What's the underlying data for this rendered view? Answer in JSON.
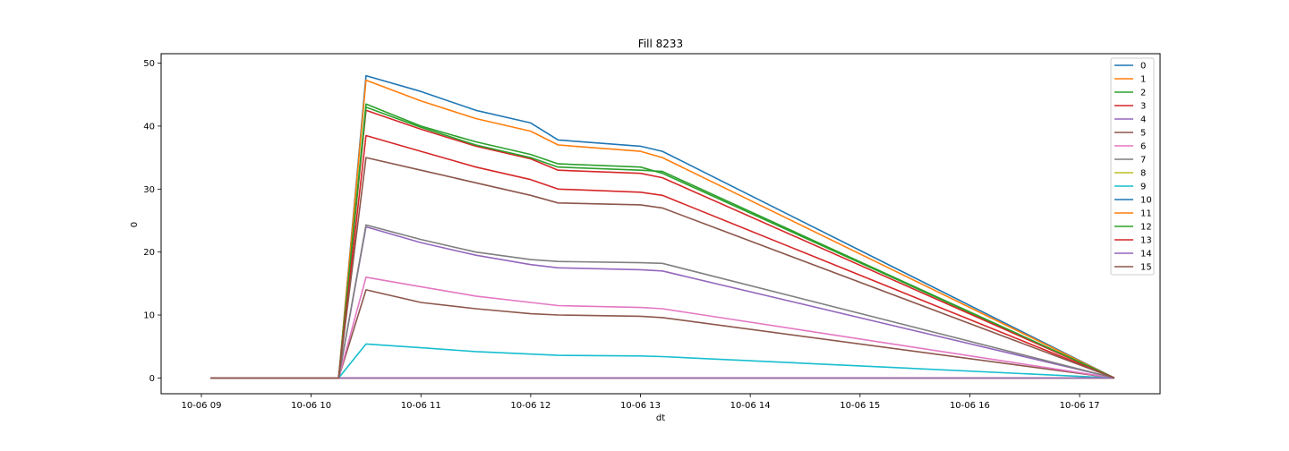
{
  "chart_data": {
    "type": "line",
    "title": "Fill 8233",
    "xlabel": "dt",
    "ylabel": "0",
    "x_ticks": [
      "10-06 09",
      "10-06 10",
      "10-06 11",
      "10-06 12",
      "10-06 13",
      "10-06 14",
      "10-06 15",
      "10-06 16",
      "10-06 17"
    ],
    "y_ticks": [
      0,
      10,
      20,
      30,
      40,
      50
    ],
    "xlim": [
      "2022-10-06 08:38",
      "2022-10-06 17:44"
    ],
    "ylim": [
      -2.5,
      51.5
    ],
    "grid": false,
    "legend_position": "top-right",
    "series": [
      {
        "name": "0",
        "color": "#1f77b4",
        "x": [
          "10-06 09:05",
          "10-06 10:15",
          "10-06 10:30",
          "10-06 11:00",
          "10-06 11:30",
          "10-06 12:00",
          "10-06 12:15",
          "10-06 13:00",
          "10-06 13:12",
          "10-06 17:19"
        ],
        "values": [
          0,
          0,
          48.0,
          45.5,
          42.5,
          40.5,
          37.8,
          36.8,
          36.0,
          0
        ]
      },
      {
        "name": "1",
        "color": "#ff7f0e",
        "x": [
          "10-06 09:05",
          "10-06 10:15",
          "10-06 10:30",
          "10-06 11:00",
          "10-06 11:30",
          "10-06 12:00",
          "10-06 12:15",
          "10-06 13:00",
          "10-06 13:12",
          "10-06 17:19"
        ],
        "values": [
          0,
          0,
          47.3,
          44.0,
          41.2,
          39.2,
          37.0,
          36.0,
          35.0,
          0
        ]
      },
      {
        "name": "2",
        "color": "#2ca02c",
        "x": [
          "10-06 09:05",
          "10-06 10:15",
          "10-06 10:30",
          "10-06 11:00",
          "10-06 11:30",
          "10-06 12:00",
          "10-06 12:15",
          "10-06 13:00",
          "10-06 13:12",
          "10-06 17:19"
        ],
        "values": [
          0,
          0,
          43.5,
          40.0,
          37.5,
          35.5,
          34.0,
          33.5,
          32.5,
          0
        ]
      },
      {
        "name": "3",
        "color": "#d62728",
        "x": [
          "10-06 09:05",
          "10-06 10:15",
          "10-06 10:30",
          "10-06 11:00",
          "10-06 11:30",
          "10-06 12:00",
          "10-06 12:15",
          "10-06 13:00",
          "10-06 13:12",
          "10-06 17:19"
        ],
        "values": [
          0,
          0,
          42.5,
          39.5,
          36.8,
          34.8,
          33.0,
          32.5,
          31.8,
          0
        ]
      },
      {
        "name": "4",
        "color": "#9467bd",
        "x": [
          "10-06 09:05",
          "10-06 10:15",
          "10-06 10:30",
          "10-06 11:00",
          "10-06 11:30",
          "10-06 12:00",
          "10-06 12:15",
          "10-06 13:00",
          "10-06 13:12",
          "10-06 17:19"
        ],
        "values": [
          0,
          0,
          24.0,
          21.5,
          19.5,
          18.0,
          17.5,
          17.2,
          17.0,
          0
        ]
      },
      {
        "name": "5",
        "color": "#8c564b",
        "x": [
          "10-06 09:05",
          "10-06 10:15",
          "10-06 10:30",
          "10-06 11:00",
          "10-06 11:30",
          "10-06 12:00",
          "10-06 12:15",
          "10-06 13:00",
          "10-06 13:12",
          "10-06 17:19"
        ],
        "values": [
          0,
          0,
          14.0,
          12.0,
          11.0,
          10.2,
          10.0,
          9.8,
          9.6,
          0
        ]
      },
      {
        "name": "6",
        "color": "#e377c2",
        "x": [
          "10-06 09:05",
          "10-06 10:15",
          "10-06 10:30",
          "10-06 11:00",
          "10-06 11:30",
          "10-06 12:00",
          "10-06 12:15",
          "10-06 13:00",
          "10-06 13:12",
          "10-06 17:19"
        ],
        "values": [
          0,
          0,
          16.0,
          14.5,
          13.0,
          12.0,
          11.5,
          11.2,
          11.0,
          0
        ]
      },
      {
        "name": "7",
        "color": "#7f7f7f",
        "x": [
          "10-06 09:05",
          "10-06 10:15",
          "10-06 10:30",
          "10-06 11:00",
          "10-06 11:30",
          "10-06 12:00",
          "10-06 12:15",
          "10-06 13:00",
          "10-06 13:12",
          "10-06 17:19"
        ],
        "values": [
          0,
          0,
          24.3,
          22.0,
          20.0,
          18.8,
          18.5,
          18.3,
          18.2,
          0
        ]
      },
      {
        "name": "8",
        "color": "#bcbd22",
        "x": [
          "10-06 09:05",
          "10-06 10:15",
          "10-06 13:12",
          "10-06 17:19"
        ],
        "values": [
          0,
          0,
          0,
          0
        ]
      },
      {
        "name": "9",
        "color": "#17becf",
        "x": [
          "10-06 09:05",
          "10-06 10:15",
          "10-06 10:30",
          "10-06 11:00",
          "10-06 11:30",
          "10-06 12:00",
          "10-06 12:15",
          "10-06 13:00",
          "10-06 13:12",
          "10-06 17:19"
        ],
        "values": [
          0,
          0,
          5.4,
          4.8,
          4.2,
          3.8,
          3.6,
          3.5,
          3.4,
          0
        ]
      },
      {
        "name": "10",
        "color": "#1f77b4",
        "x": [
          "10-06 09:05",
          "10-06 10:15",
          "10-06 13:12",
          "10-06 17:19"
        ],
        "values": [
          0,
          0,
          0,
          0
        ]
      },
      {
        "name": "11",
        "color": "#ff7f0e",
        "x": [
          "10-06 09:05",
          "10-06 10:15",
          "10-06 13:12",
          "10-06 17:19"
        ],
        "values": [
          0,
          0,
          0,
          0
        ]
      },
      {
        "name": "12",
        "color": "#2ca02c",
        "x": [
          "10-06 09:05",
          "10-06 10:15",
          "10-06 10:30",
          "10-06 11:00",
          "10-06 11:30",
          "10-06 12:00",
          "10-06 12:15",
          "10-06 13:00",
          "10-06 13:12",
          "10-06 17:19"
        ],
        "values": [
          0,
          0,
          43.0,
          39.8,
          37.0,
          35.0,
          33.5,
          33.0,
          32.8,
          0
        ]
      },
      {
        "name": "13",
        "color": "#d62728",
        "x": [
          "10-06 09:05",
          "10-06 10:15",
          "10-06 10:30",
          "10-06 11:00",
          "10-06 11:30",
          "10-06 12:00",
          "10-06 12:15",
          "10-06 13:00",
          "10-06 13:12",
          "10-06 17:19"
        ],
        "values": [
          0,
          0,
          38.5,
          36.0,
          33.5,
          31.5,
          30.0,
          29.5,
          29.0,
          0
        ]
      },
      {
        "name": "14",
        "color": "#9467bd",
        "x": [
          "10-06 09:05",
          "10-06 10:15",
          "10-06 13:12",
          "10-06 17:19"
        ],
        "values": [
          0,
          0,
          0,
          0
        ]
      },
      {
        "name": "15",
        "color": "#8c564b",
        "x": [
          "10-06 09:05",
          "10-06 10:15",
          "10-06 10:30",
          "10-06 11:00",
          "10-06 11:30",
          "10-06 12:00",
          "10-06 12:15",
          "10-06 13:00",
          "10-06 13:12",
          "10-06 17:19"
        ],
        "values": [
          0,
          0,
          35.0,
          33.0,
          31.0,
          29.0,
          27.8,
          27.5,
          27.0,
          0
        ]
      }
    ]
  }
}
